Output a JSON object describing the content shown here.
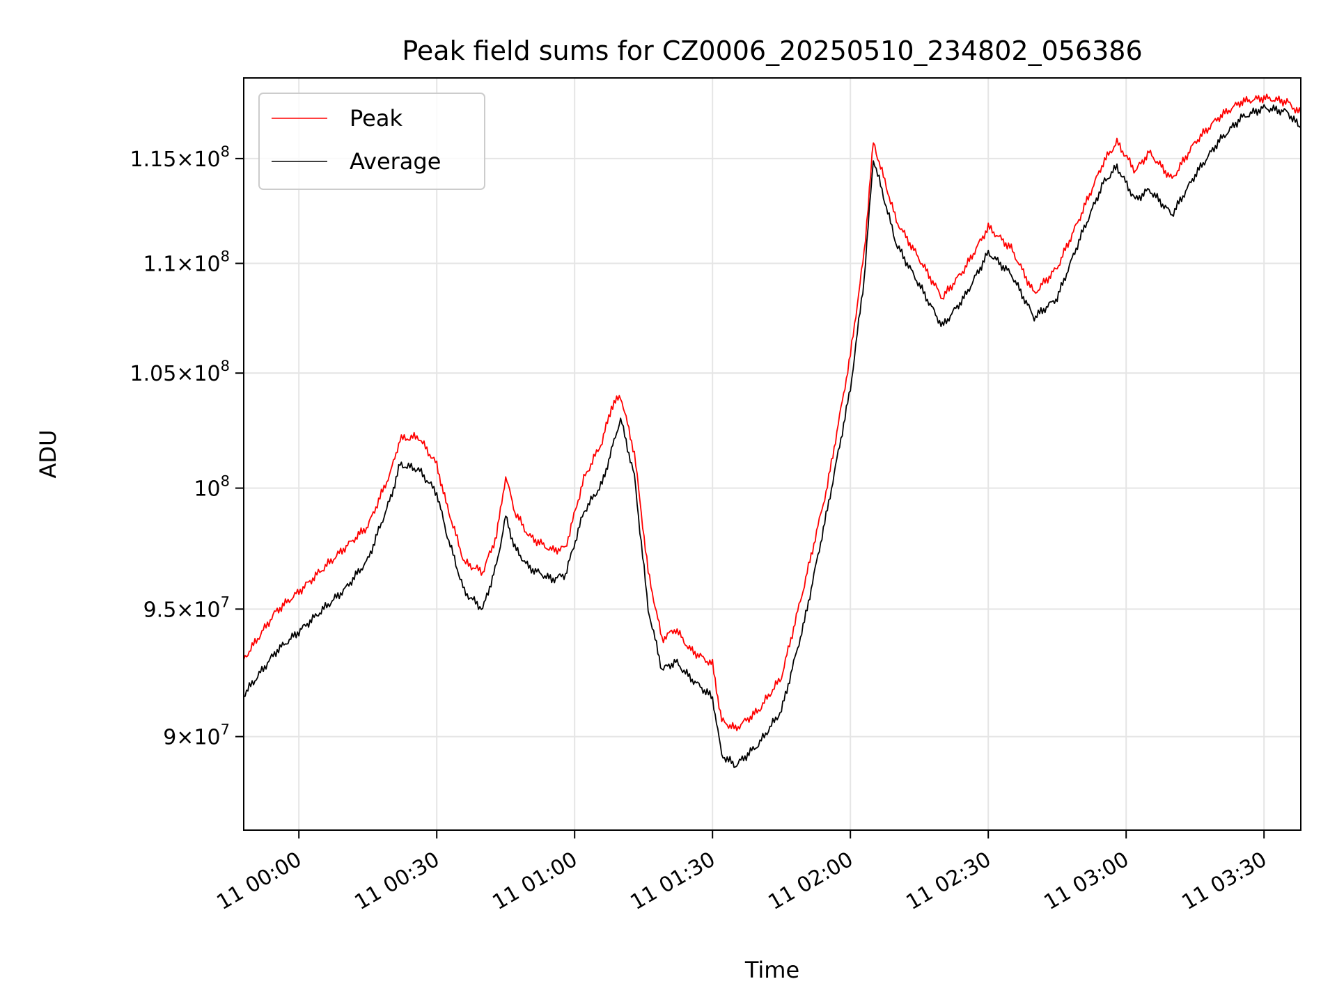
{
  "chart_data": {
    "type": "line",
    "title": "Peak field sums for CZ0006_20250510_234802_056386",
    "xlabel": "Time",
    "ylabel": "ADU",
    "xlim": [
      "2025-05-10T23:48:00",
      "2025-05-11T03:38:00"
    ],
    "ylim": [
      86500000,
      119000000
    ],
    "y_scale": "log",
    "grid": true,
    "legend_position": "top-left",
    "x_ticks": [
      {
        "value": "2025-05-11T00:00:00",
        "label": "11 00:00"
      },
      {
        "value": "2025-05-11T00:30:00",
        "label": "11 00:30"
      },
      {
        "value": "2025-05-11T01:00:00",
        "label": "11 01:00"
      },
      {
        "value": "2025-05-11T01:30:00",
        "label": "11 01:30"
      },
      {
        "value": "2025-05-11T02:00:00",
        "label": "11 02:00"
      },
      {
        "value": "2025-05-11T02:30:00",
        "label": "11 02:30"
      },
      {
        "value": "2025-05-11T03:00:00",
        "label": "11 03:00"
      },
      {
        "value": "2025-05-11T03:30:00",
        "label": "11 03:30"
      }
    ],
    "y_ticks": [
      {
        "value": 90000000,
        "mantissa": "9",
        "exponent": "7"
      },
      {
        "value": 95000000,
        "mantissa": "9.5",
        "exponent": "7"
      },
      {
        "value": 100000000,
        "mantissa": "",
        "exponent": "8"
      },
      {
        "value": 105000000,
        "mantissa": "1.05",
        "exponent": "8"
      },
      {
        "value": 110000000,
        "mantissa": "1.1",
        "exponent": "8"
      },
      {
        "value": 115000000,
        "mantissa": "1.15",
        "exponent": "8"
      }
    ],
    "tick_times_sign": "×",
    "tick_base": "10",
    "series": [
      {
        "name": "Peak",
        "color": "#ff0000",
        "x": [
          "2025-05-10T23:48:00",
          "2025-05-10T23:55:00",
          "2025-05-11T00:00:00",
          "2025-05-11T00:10:00",
          "2025-05-11T00:15:00",
          "2025-05-11T00:20:00",
          "2025-05-11T00:22:00",
          "2025-05-11T00:26:00",
          "2025-05-11T00:30:00",
          "2025-05-11T00:32:00",
          "2025-05-11T00:36:00",
          "2025-05-11T00:40:00",
          "2025-05-11T00:43:00",
          "2025-05-11T00:45:00",
          "2025-05-11T00:47:00",
          "2025-05-11T00:50:00",
          "2025-05-11T00:55:00",
          "2025-05-11T00:58:00",
          "2025-05-11T01:02:00",
          "2025-05-11T01:06:00",
          "2025-05-11T01:08:00",
          "2025-05-11T01:10:00",
          "2025-05-11T01:13:00",
          "2025-05-11T01:16:00",
          "2025-05-11T01:19:00",
          "2025-05-11T01:22:00",
          "2025-05-11T01:25:00",
          "2025-05-11T01:30:00",
          "2025-05-11T01:32:00",
          "2025-05-11T01:35:00",
          "2025-05-11T01:40:00",
          "2025-05-11T01:45:00",
          "2025-05-11T01:50:00",
          "2025-05-11T01:55:00",
          "2025-05-11T02:00:00",
          "2025-05-11T02:03:00",
          "2025-05-11T02:05:00",
          "2025-05-11T02:10:00",
          "2025-05-11T02:15:00",
          "2025-05-11T02:20:00",
          "2025-05-11T02:25:00",
          "2025-05-11T02:30:00",
          "2025-05-11T02:35:00",
          "2025-05-11T02:40:00",
          "2025-05-11T02:45:00",
          "2025-05-11T02:50:00",
          "2025-05-11T02:55:00",
          "2025-05-11T02:58:00",
          "2025-05-11T03:02:00",
          "2025-05-11T03:05:00",
          "2025-05-11T03:10:00",
          "2025-05-11T03:15:00",
          "2025-05-11T03:20:00",
          "2025-05-11T03:25:00",
          "2025-05-11T03:30:00",
          "2025-05-11T03:35:00",
          "2025-05-11T03:38:00"
        ],
        "values": [
          93000000,
          94900000,
          95700000,
          97500000,
          98400000,
          100700000,
          102100000,
          102200000,
          101000000,
          99400000,
          96900000,
          96500000,
          98000000,
          100500000,
          99000000,
          98000000,
          97400000,
          97500000,
          100400000,
          102000000,
          103500000,
          104000000,
          101500000,
          96500000,
          93800000,
          94200000,
          93400000,
          92800000,
          90600000,
          90300000,
          91000000,
          92300000,
          96000000,
          100100000,
          105800000,
          110500000,
          115800000,
          112000000,
          110200000,
          108400000,
          109800000,
          111700000,
          110700000,
          108600000,
          109800000,
          112200000,
          114800000,
          115800000,
          114400000,
          115300000,
          114000000,
          115800000,
          117000000,
          117800000,
          118000000,
          117800000,
          117200000
        ]
      },
      {
        "name": "Average",
        "color": "#000000",
        "x": [
          "2025-05-10T23:48:00",
          "2025-05-10T23:55:00",
          "2025-05-11T00:00:00",
          "2025-05-11T00:10:00",
          "2025-05-11T00:15:00",
          "2025-05-11T00:20:00",
          "2025-05-11T00:22:00",
          "2025-05-11T00:26:00",
          "2025-05-11T00:30:00",
          "2025-05-11T00:32:00",
          "2025-05-11T00:36:00",
          "2025-05-11T00:40:00",
          "2025-05-11T00:43:00",
          "2025-05-11T00:45:00",
          "2025-05-11T00:47:00",
          "2025-05-11T00:50:00",
          "2025-05-11T00:55:00",
          "2025-05-11T00:58:00",
          "2025-05-11T01:02:00",
          "2025-05-11T01:06:00",
          "2025-05-11T01:08:00",
          "2025-05-11T01:10:00",
          "2025-05-11T01:13:00",
          "2025-05-11T01:16:00",
          "2025-05-11T01:19:00",
          "2025-05-11T01:22:00",
          "2025-05-11T01:25:00",
          "2025-05-11T01:30:00",
          "2025-05-11T01:32:00",
          "2025-05-11T01:35:00",
          "2025-05-11T01:40:00",
          "2025-05-11T01:45:00",
          "2025-05-11T01:50:00",
          "2025-05-11T01:55:00",
          "2025-05-11T02:00:00",
          "2025-05-11T02:03:00",
          "2025-05-11T02:05:00",
          "2025-05-11T02:10:00",
          "2025-05-11T02:15:00",
          "2025-05-11T02:20:00",
          "2025-05-11T02:25:00",
          "2025-05-11T02:30:00",
          "2025-05-11T02:35:00",
          "2025-05-11T02:40:00",
          "2025-05-11T02:45:00",
          "2025-05-11T02:50:00",
          "2025-05-11T02:55:00",
          "2025-05-11T02:58:00",
          "2025-05-11T03:02:00",
          "2025-05-11T03:05:00",
          "2025-05-11T03:10:00",
          "2025-05-11T03:15:00",
          "2025-05-11T03:20:00",
          "2025-05-11T03:25:00",
          "2025-05-11T03:30:00",
          "2025-05-11T03:35:00",
          "2025-05-11T03:38:00"
        ],
        "values": [
          91600000,
          93300000,
          94100000,
          95800000,
          97000000,
          99600000,
          101000000,
          100800000,
          99800000,
          98200000,
          95700000,
          95000000,
          96800000,
          98800000,
          97500000,
          96700000,
          96200000,
          96400000,
          99000000,
          100200000,
          101600000,
          103000000,
          100500000,
          95000000,
          92600000,
          92900000,
          92300000,
          91500000,
          89300000,
          88900000,
          89700000,
          91000000,
          94500000,
          99100000,
          104300000,
          109300000,
          115000000,
          110900000,
          109000000,
          107100000,
          108500000,
          110500000,
          109500000,
          107500000,
          108400000,
          111200000,
          113800000,
          114600000,
          113000000,
          113500000,
          112300000,
          114200000,
          115800000,
          117000000,
          117500000,
          117300000,
          116500000
        ]
      }
    ]
  }
}
